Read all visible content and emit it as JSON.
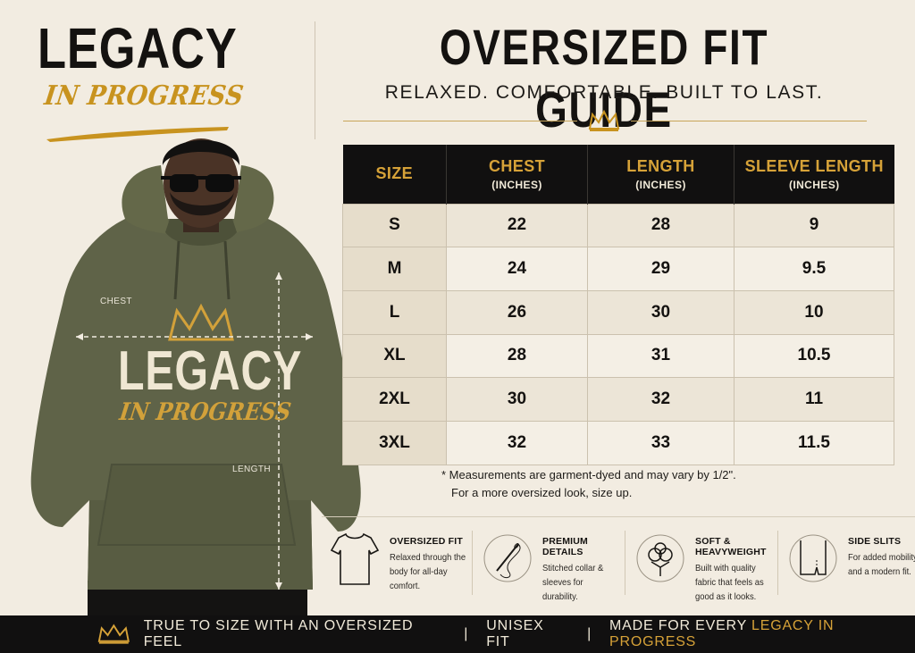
{
  "brand": {
    "title": "LEGACY",
    "subtitle": "IN PROGRESS"
  },
  "header": {
    "title": "OVERSIZED FIT GUIDE",
    "subtitle": "RELAXED. COMFORTABLE. BUILT TO LAST."
  },
  "model": {
    "chest_label": "CHEST",
    "length_label": "LENGTH",
    "hoodie_title": "LEGACY",
    "hoodie_subtitle": "IN PROGRESS"
  },
  "size_table": {
    "headers": [
      {
        "label": "SIZE",
        "unit": ""
      },
      {
        "label": "CHEST",
        "unit": "(INCHES)"
      },
      {
        "label": "LENGTH",
        "unit": "(INCHES)"
      },
      {
        "label": "SLEEVE LENGTH",
        "unit": "(INCHES)"
      }
    ],
    "rows": [
      [
        "S",
        "22",
        "28",
        "9"
      ],
      [
        "M",
        "24",
        "29",
        "9.5"
      ],
      [
        "L",
        "26",
        "30",
        "10"
      ],
      [
        "XL",
        "28",
        "31",
        "10.5"
      ],
      [
        "2XL",
        "30",
        "32",
        "11"
      ],
      [
        "3XL",
        "32",
        "33",
        "11.5"
      ]
    ]
  },
  "footnote": {
    "line1": "* Measurements are garment-dyed and may vary by 1/2\".",
    "line2": "For a more oversized look, size up."
  },
  "features": [
    {
      "title": "OVERSIZED FIT",
      "desc": "Relaxed through the body for all-day comfort.",
      "icon": "tshirt-icon"
    },
    {
      "title": "PREMIUM DETAILS",
      "desc": "Stitched collar & sleeves for durability.",
      "icon": "needle-thread-icon"
    },
    {
      "title": "SOFT & HEAVYWEIGHT",
      "desc": "Built with quality fabric that feels as good as it looks.",
      "icon": "cotton-icon"
    },
    {
      "title": "SIDE SLITS",
      "desc": "For added mobility and a modern fit.",
      "icon": "side-slit-icon"
    }
  ],
  "bottom_bar": {
    "item1": "TRUE TO SIZE WITH AN OVERSIZED FEEL",
    "sep1": "|",
    "item2": "UNISEX FIT",
    "sep2": "|",
    "item3_prefix": "MADE FOR EVERY ",
    "item3_accent": "LEGACY IN PROGRESS"
  },
  "colors": {
    "background": "#f2ece1",
    "gold": "#d6a238",
    "dark": "#111010",
    "hoodie": "#5f6348"
  }
}
